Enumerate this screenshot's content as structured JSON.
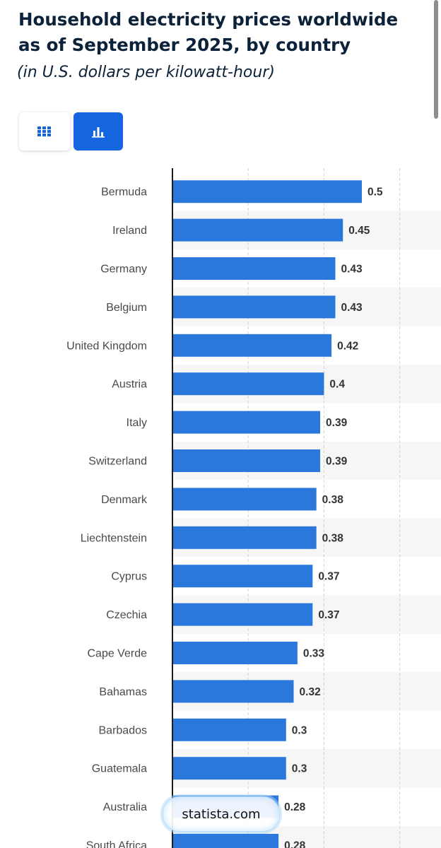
{
  "header": {
    "title": "Household electricity prices worldwide as of September 2025, by country",
    "subtitle": "(in U.S. dollars per kilowatt-hour)"
  },
  "toolbar": {
    "table_view_icon": "table-grid-icon",
    "chart_view_icon": "bar-chart-icon",
    "active_view": "chart"
  },
  "watermark": {
    "text": "statista.com"
  },
  "colors": {
    "bar": "#2b78dd",
    "accent": "#1565e0",
    "title": "#0c2239"
  },
  "chart_data": {
    "type": "bar",
    "orientation": "horizontal",
    "categories": [
      "Bermuda",
      "Ireland",
      "Germany",
      "Belgium",
      "United Kingdom",
      "Austria",
      "Italy",
      "Switzerland",
      "Denmark",
      "Liechtenstein",
      "Cyprus",
      "Czechia",
      "Cape Verde",
      "Bahamas",
      "Barbados",
      "Guatemala",
      "Australia",
      "South Africa"
    ],
    "values": [
      0.5,
      0.45,
      0.43,
      0.43,
      0.42,
      0.4,
      0.39,
      0.39,
      0.38,
      0.38,
      0.37,
      0.37,
      0.33,
      0.32,
      0.3,
      0.3,
      0.28,
      0.28
    ],
    "xlim": [
      0,
      0.6
    ],
    "grid": true,
    "alternating_row_shading": true
  }
}
